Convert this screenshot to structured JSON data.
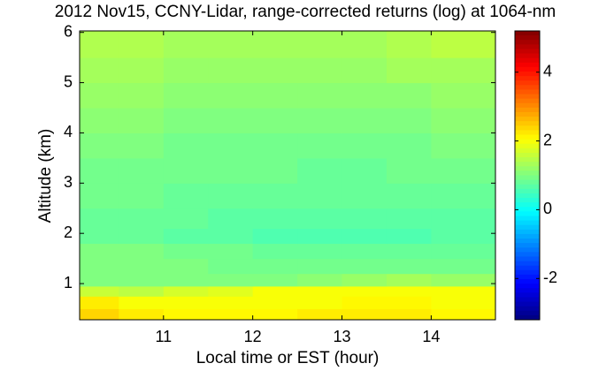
{
  "chart_data": {
    "type": "heatmap",
    "title": "2012 Nov15, CCNY-Lidar, range-corrected returns (log) at 1064-nm",
    "x_label": "Local time or EST (hour)",
    "y_label": "Altitude (km)",
    "x_edges": [
      10.06,
      10.5,
      11,
      11.5,
      12,
      12.5,
      13,
      13.5,
      14,
      14.72
    ],
    "y_edges": [
      0.28,
      0.5,
      0.75,
      0.95,
      1.2,
      1.5,
      1.8,
      2.1,
      2.5,
      3,
      3.5,
      4,
      4.5,
      5,
      5.5,
      6.03
    ],
    "z": [
      [
        2.4,
        2.2,
        2.1,
        2.1,
        2.1,
        2.2,
        2.2,
        2.2,
        2.1
      ],
      [
        2.2,
        2.0,
        2.0,
        2.0,
        2.0,
        2.0,
        2.1,
        2.1,
        2.0
      ],
      [
        1.6,
        1.5,
        1.7,
        1.8,
        2.0,
        2.0,
        2.0,
        2.0,
        2.0
      ],
      [
        1.0,
        1.0,
        1.0,
        1.0,
        1.0,
        1.1,
        1.2,
        1.3,
        1.2
      ],
      [
        1.0,
        1.0,
        1.0,
        0.9,
        0.9,
        0.9,
        0.9,
        0.9,
        0.9
      ],
      [
        1.0,
        1.0,
        0.9,
        0.9,
        0.8,
        0.8,
        0.8,
        0.8,
        0.8
      ],
      [
        0.8,
        0.8,
        0.7,
        0.7,
        0.6,
        0.6,
        0.6,
        0.6,
        0.7
      ],
      [
        0.8,
        0.8,
        0.8,
        0.7,
        0.7,
        0.7,
        0.7,
        0.7,
        0.7
      ],
      [
        0.9,
        0.9,
        0.8,
        0.8,
        0.8,
        0.8,
        0.8,
        0.8,
        0.8
      ],
      [
        0.9,
        0.9,
        0.9,
        0.9,
        0.9,
        0.8,
        0.8,
        0.9,
        0.9
      ],
      [
        1.0,
        1.0,
        0.9,
        0.9,
        0.9,
        0.9,
        0.9,
        0.9,
        1.0
      ],
      [
        1.1,
        1.1,
        1.0,
        1.0,
        1.0,
        1.0,
        1.0,
        1.0,
        1.1
      ],
      [
        1.2,
        1.2,
        1.1,
        1.1,
        1.1,
        1.1,
        1.1,
        1.1,
        1.2
      ],
      [
        1.3,
        1.3,
        1.2,
        1.2,
        1.2,
        1.2,
        1.2,
        1.3,
        1.3
      ],
      [
        1.4,
        1.4,
        1.3,
        1.3,
        1.3,
        1.3,
        1.3,
        1.4,
        1.5
      ]
    ],
    "xlim": [
      10.06,
      14.72
    ],
    "ylim": [
      0.28,
      6.03
    ],
    "xticks": [
      11,
      12,
      13,
      14
    ],
    "yticks": [
      1,
      2,
      3,
      4,
      5,
      6
    ],
    "colormap": "jet",
    "clim": [
      -3.2,
      5.2
    ],
    "cticks": [
      -2,
      0,
      2,
      4
    ]
  }
}
